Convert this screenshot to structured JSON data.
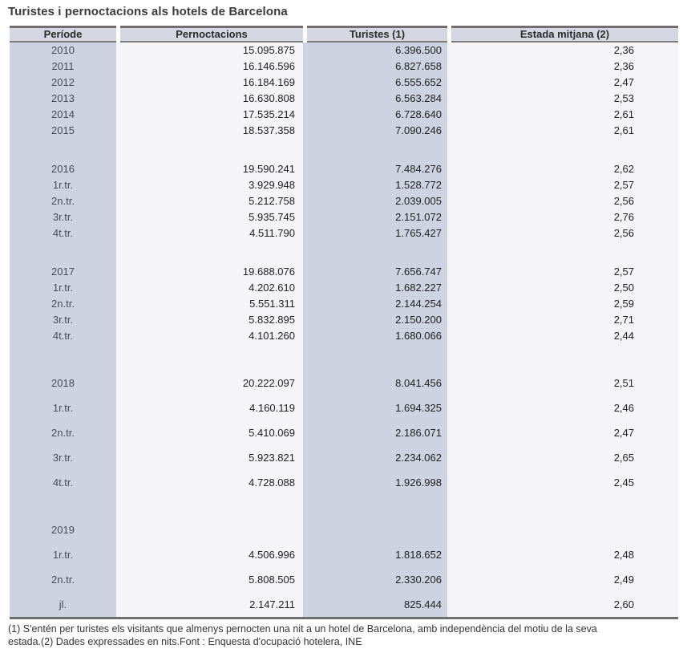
{
  "title": "Turistes i pernoctacions als hotels de Barcelona",
  "chart_data": {
    "type": "table",
    "title": "Turistes i pernoctacions als hotels de Barcelona",
    "columns": [
      "Període",
      "Pernoctacions",
      "Turistes (1)",
      "Estada mitjana (2)"
    ],
    "rows": [
      {
        "period": "2010",
        "pernoctacions": "15.095.875",
        "turistes": "6.396.500",
        "estada": "2,36",
        "size": "normal"
      },
      {
        "period": "2011",
        "pernoctacions": "16.146.596",
        "turistes": "6.827.658",
        "estada": "2,36",
        "size": "normal"
      },
      {
        "period": "2012",
        "pernoctacions": "16.184.169",
        "turistes": "6.555.652",
        "estada": "2,47",
        "size": "normal"
      },
      {
        "period": "2013",
        "pernoctacions": "16.630.808",
        "turistes": "6.563.284",
        "estada": "2,53",
        "size": "normal"
      },
      {
        "period": "2014",
        "pernoctacions": "17.535.214",
        "turistes": "6.728.640",
        "estada": "2,61",
        "size": "normal"
      },
      {
        "period": "2015",
        "pernoctacions": "18.537.358",
        "turistes": "7.090.246",
        "estada": "2,61",
        "size": "normal"
      },
      {
        "period": "",
        "pernoctacions": "",
        "turistes": "",
        "estada": "",
        "size": "spacer"
      },
      {
        "period": "2016",
        "pernoctacions": "19.590.241",
        "turistes": "7.484.276",
        "estada": "2,62",
        "size": "normal"
      },
      {
        "period": "1r.tr.",
        "pernoctacions": "3.929.948",
        "turistes": "1.528.772",
        "estada": "2,57",
        "size": "normal"
      },
      {
        "period": "2n.tr.",
        "pernoctacions": "5.212.758",
        "turistes": "2.039.005",
        "estada": "2,56",
        "size": "normal"
      },
      {
        "period": "3r.tr.",
        "pernoctacions": "5.935.745",
        "turistes": "2.151.072",
        "estada": "2,76",
        "size": "normal"
      },
      {
        "period": "4t.tr.",
        "pernoctacions": "4.511.790",
        "turistes": "1.765.427",
        "estada": "2,56",
        "size": "normal"
      },
      {
        "period": "",
        "pernoctacions": "",
        "turistes": "",
        "estada": "",
        "size": "spacer"
      },
      {
        "period": "2017",
        "pernoctacions": "19.688.076",
        "turistes": "7.656.747",
        "estada": "2,57",
        "size": "normal"
      },
      {
        "period": "1r.tr.",
        "pernoctacions": "4.202.610",
        "turistes": "1.682.227",
        "estada": "2,50",
        "size": "normal"
      },
      {
        "period": "2n.tr.",
        "pernoctacions": "5.551.311",
        "turistes": "2.144.254",
        "estada": "2,59",
        "size": "normal"
      },
      {
        "period": "3r.tr.",
        "pernoctacions": "5.832.895",
        "turistes": "2.150.200",
        "estada": "2,71",
        "size": "normal"
      },
      {
        "period": "4t.tr.",
        "pernoctacions": "4.101.260",
        "turistes": "1.680.066",
        "estada": "2,44",
        "size": "normal"
      },
      {
        "period": "",
        "pernoctacions": "",
        "turistes": "",
        "estada": "",
        "size": "spacer2"
      },
      {
        "period": "2018",
        "pernoctacions": "20.222.097",
        "turistes": "8.041.456",
        "estada": "2,51",
        "size": "tall"
      },
      {
        "period": "1r.tr.",
        "pernoctacions": "4.160.119",
        "turistes": "1.694.325",
        "estada": "2,46",
        "size": "tall"
      },
      {
        "period": "2n.tr.",
        "pernoctacions": "5.410.069",
        "turistes": "2.186.071",
        "estada": "2,47",
        "size": "tall"
      },
      {
        "period": "3r.tr.",
        "pernoctacions": "5.923.821",
        "turistes": "2.234.062",
        "estada": "2,65",
        "size": "tall"
      },
      {
        "period": "4t.tr.",
        "pernoctacions": "4.728.088",
        "turistes": "1.926.998",
        "estada": "2,45",
        "size": "tall"
      },
      {
        "period": "",
        "pernoctacions": "",
        "turistes": "",
        "estada": "",
        "size": "spacer"
      },
      {
        "period": "2019",
        "pernoctacions": "",
        "turistes": "",
        "estada": "",
        "size": "tall"
      },
      {
        "period": "1r.tr.",
        "pernoctacions": "4.506.996",
        "turistes": "1.818.652",
        "estada": "2,48",
        "size": "tall"
      },
      {
        "period": "2n.tr.",
        "pernoctacions": "5.808.505",
        "turistes": "2.330.206",
        "estada": "2,49",
        "size": "tall"
      },
      {
        "period": "jl.",
        "pernoctacions": "2.147.211",
        "turistes": "825.444",
        "estada": "2,60",
        "size": "tall"
      }
    ]
  },
  "footnotes": {
    "line1": "(1) S'entén per turistes els visitants que almenys pernocten una nit a un hotel de Barcelona, amb independència del motiu de la seva",
    "line2": "estada.(2) Dades expressades en nits.Font : Enquesta d'ocupació hotelera, INE"
  },
  "colors": {
    "header_bg": "#d4d6e1",
    "accent_column_bg": "#cdd3e0",
    "light_column_bg": "#f4f4f9",
    "border_dark": "#6f6f6f",
    "border_medium": "#7e7e7e"
  }
}
